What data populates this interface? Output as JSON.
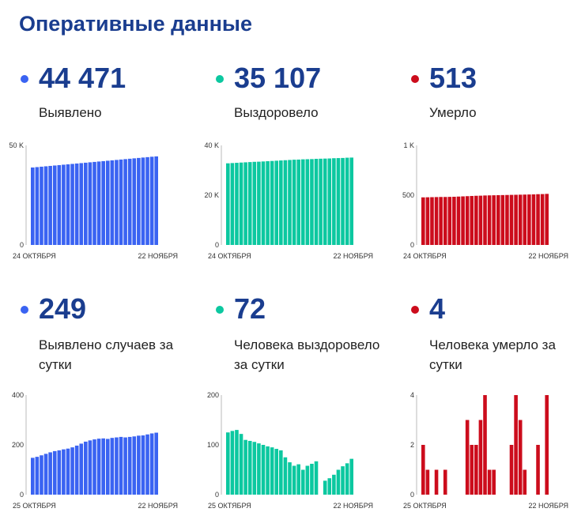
{
  "title": "Оперативные данные",
  "colors": {
    "blue": "#3a63f2",
    "teal": "#0cc8a0",
    "red": "#cc0c1c"
  },
  "stats": [
    {
      "value": "44 471",
      "label": "Выявлено",
      "color": "#3a63f2"
    },
    {
      "value": "35 107",
      "label": "Выздоровело",
      "color": "#0cc8a0"
    },
    {
      "value": "513",
      "label": "Умерло",
      "color": "#cc0c1c"
    },
    {
      "value": "249",
      "label": "Выявлено случаев за сутки",
      "color": "#3a63f2"
    },
    {
      "value": "72",
      "label": "Человека выздоровело за сутки",
      "color": "#0cc8a0"
    },
    {
      "value": "4",
      "label": "Человека умерло за сутки",
      "color": "#cc0c1c"
    }
  ],
  "chart_data": [
    {
      "type": "bar",
      "color": "#3a63f2",
      "x_start": "24 ОКТЯБРЯ",
      "x_end": "22 НОЯБРЯ",
      "ylim": [
        0,
        50000
      ],
      "yticks": [
        {
          "value": 0,
          "label": "0"
        },
        {
          "value": 50000,
          "label": "50 K"
        }
      ],
      "values": [
        38900,
        39100,
        39300,
        39500,
        39700,
        39900,
        40100,
        40300,
        40500,
        40700,
        40900,
        41100,
        41300,
        41500,
        41700,
        41900,
        42100,
        42300,
        42500,
        42700,
        42900,
        43100,
        43300,
        43500,
        43700,
        43900,
        44100,
        44300,
        44471
      ]
    },
    {
      "type": "bar",
      "color": "#0cc8a0",
      "x_start": "24 ОКТЯБРЯ",
      "x_end": "22 НОЯБРЯ",
      "ylim": [
        0,
        40000
      ],
      "yticks": [
        {
          "value": 0,
          "label": "0"
        },
        {
          "value": 20000,
          "label": "20 K"
        },
        {
          "value": 40000,
          "label": "40 K"
        }
      ],
      "values": [
        32800,
        32900,
        33000,
        33100,
        33200,
        33300,
        33400,
        33450,
        33550,
        33650,
        33750,
        33850,
        33950,
        34050,
        34150,
        34250,
        34300,
        34400,
        34450,
        34500,
        34600,
        34650,
        34700,
        34750,
        34850,
        34900,
        34950,
        35050,
        35107
      ]
    },
    {
      "type": "bar",
      "color": "#cc0c1c",
      "x_start": "24 ОКТЯБРЯ",
      "x_end": "22 НОЯБРЯ",
      "ylim": [
        0,
        1000
      ],
      "yticks": [
        {
          "value": 0,
          "label": "0"
        },
        {
          "value": 500,
          "label": "500"
        },
        {
          "value": 1000,
          "label": "1 K"
        }
      ],
      "values": [
        478,
        479,
        480,
        481,
        482,
        482,
        483,
        484,
        486,
        488,
        490,
        492,
        494,
        495,
        497,
        498,
        499,
        500,
        501,
        502,
        503,
        504,
        505,
        506,
        507,
        508,
        510,
        511,
        513
      ]
    },
    {
      "type": "bar",
      "color": "#3a63f2",
      "x_start": "25 ОКТЯБРЯ",
      "x_end": "22 НОЯБРЯ",
      "ylim": [
        0,
        400
      ],
      "yticks": [
        {
          "value": 0,
          "label": "0"
        },
        {
          "value": 200,
          "label": "200"
        },
        {
          "value": 400,
          "label": "400"
        }
      ],
      "values": [
        148,
        152,
        158,
        164,
        170,
        175,
        178,
        182,
        185,
        190,
        197,
        205,
        213,
        218,
        222,
        225,
        226,
        224,
        228,
        230,
        232,
        230,
        232,
        234,
        237,
        238,
        242,
        246,
        249
      ]
    },
    {
      "type": "bar",
      "color": "#0cc8a0",
      "x_start": "25 ОКТЯБРЯ",
      "x_end": "22 НОЯБРЯ",
      "ylim": [
        0,
        200
      ],
      "yticks": [
        {
          "value": 0,
          "label": "0"
        },
        {
          "value": 100,
          "label": "100"
        },
        {
          "value": 200,
          "label": "200"
        }
      ],
      "values": [
        125,
        128,
        130,
        122,
        110,
        108,
        106,
        103,
        100,
        97,
        95,
        92,
        89,
        75,
        65,
        58,
        61,
        50,
        58,
        62,
        67,
        0,
        28,
        33,
        40,
        50,
        57,
        63,
        72
      ]
    },
    {
      "type": "bar",
      "color": "#cc0c1c",
      "x_start": "25 ОКТЯБРЯ",
      "x_end": "22 НОЯБРЯ",
      "ylim": [
        0,
        4
      ],
      "yticks": [
        {
          "value": 0,
          "label": "0"
        },
        {
          "value": 2,
          "label": "2"
        },
        {
          "value": 4,
          "label": "4"
        }
      ],
      "values": [
        2,
        1,
        0,
        1,
        0,
        1,
        0,
        0,
        0,
        0,
        3,
        2,
        2,
        3,
        4,
        1,
        1,
        0,
        0,
        0,
        2,
        4,
        3,
        1,
        0,
        0,
        2,
        0,
        4
      ]
    }
  ]
}
